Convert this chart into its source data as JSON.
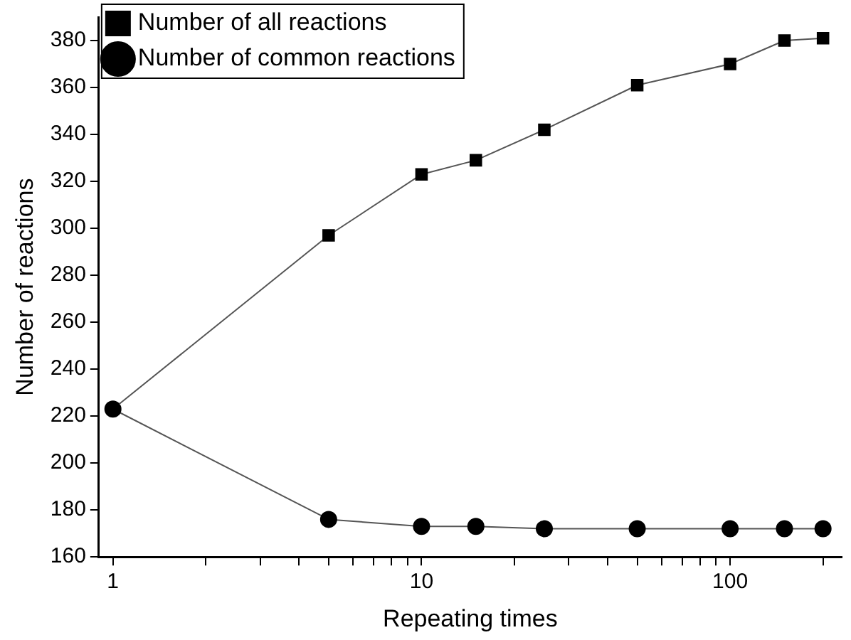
{
  "chart_data": {
    "type": "line",
    "xlabel": "Repeating times",
    "ylabel": "Number of reactions",
    "log": "x",
    "grid": false,
    "legend": "top left",
    "line_style": "solid",
    "x": [
      1,
      5,
      10,
      15,
      25,
      50,
      100,
      150,
      200
    ],
    "series": [
      {
        "name": "Number of all reactions",
        "color": "#000000",
        "marker": "square",
        "values": [
          223,
          297,
          323,
          329,
          342,
          361,
          370,
          380,
          381
        ]
      },
      {
        "name": "Number of common reactions",
        "color": "#000000",
        "marker": "circle",
        "values": [
          223,
          176,
          173,
          173,
          172,
          172,
          172,
          172,
          172
        ]
      }
    ],
    "xlim": [
      0.9,
      230
    ],
    "ylim": [
      160,
      390
    ],
    "xticks": [
      1,
      {
        "value": 2,
        "label": null
      },
      {
        "value": 3,
        "label": null
      },
      {
        "value": 4,
        "label": null
      },
      {
        "value": 5,
        "label": null
      },
      {
        "value": 6,
        "label": null
      },
      {
        "value": 7,
        "label": null
      },
      {
        "value": 8,
        "label": null
      },
      {
        "value": 9,
        "label": null
      },
      10,
      {
        "value": 20,
        "label": null
      },
      {
        "value": 30,
        "label": null
      },
      {
        "value": 40,
        "label": null
      },
      {
        "value": 50,
        "label": null
      },
      {
        "value": 60,
        "label": null
      },
      {
        "value": 70,
        "label": null
      },
      {
        "value": 80,
        "label": null
      },
      {
        "value": 90,
        "label": null
      },
      100,
      {
        "value": 200,
        "label": null
      }
    ],
    "yticks": [
      160,
      180,
      200,
      220,
      240,
      260,
      280,
      300,
      320,
      340,
      360,
      380
    ]
  }
}
